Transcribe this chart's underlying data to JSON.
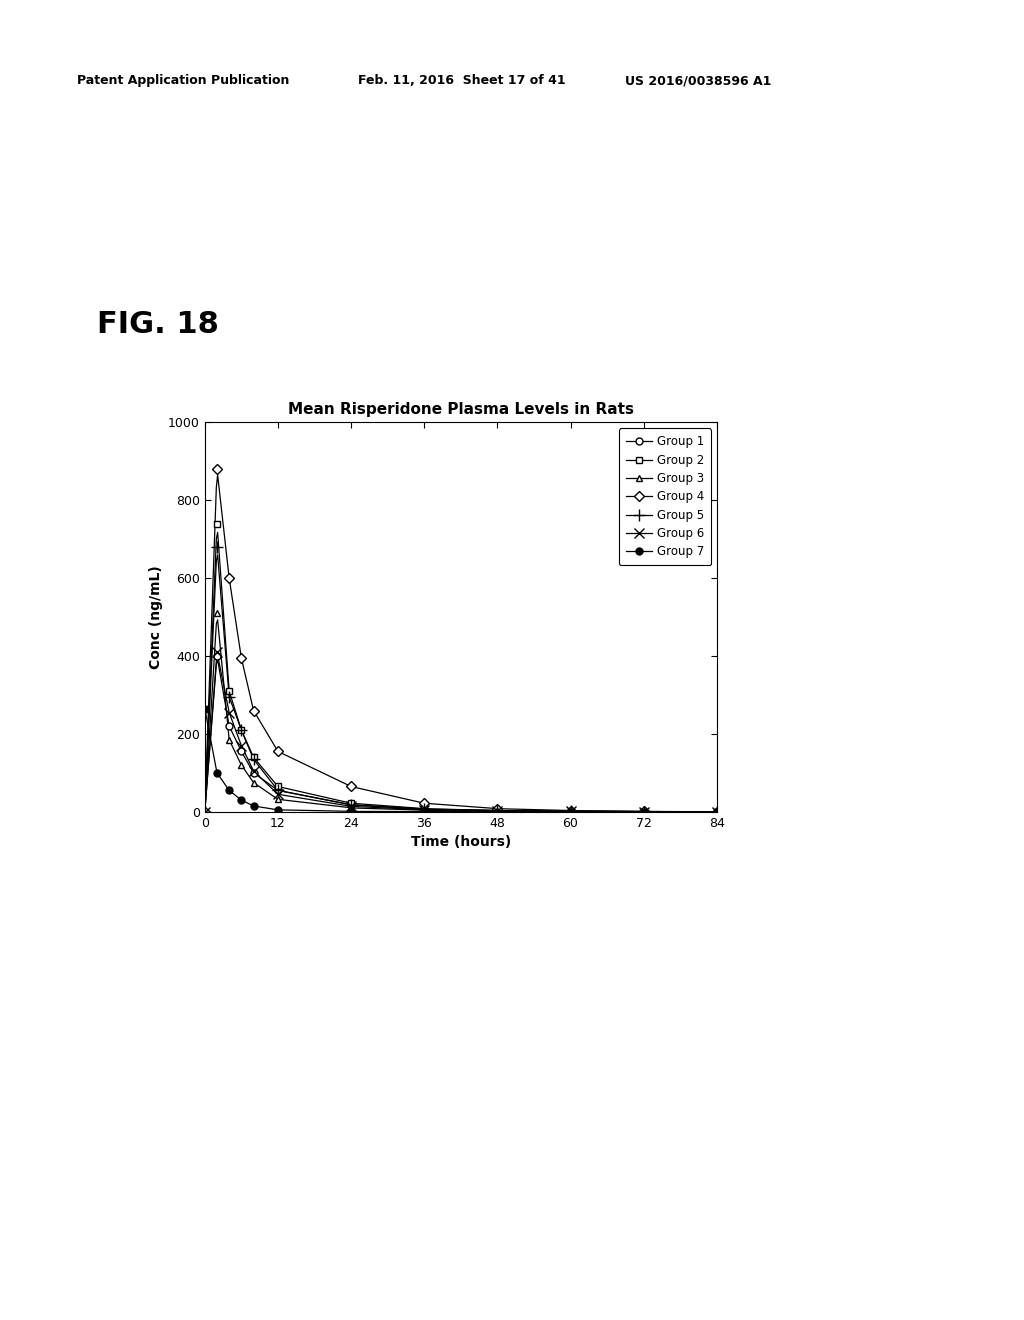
{
  "title": "Mean Risperidone Plasma Levels in Rats",
  "xlabel": "Time (hours)",
  "ylabel": "Conc (ng/mL)",
  "ylim": [
    0,
    1000
  ],
  "xlim": [
    0,
    84
  ],
  "xticks": [
    0,
    12,
    24,
    36,
    48,
    60,
    72,
    84
  ],
  "yticks": [
    0,
    200,
    400,
    600,
    800,
    1000
  ],
  "background_color": "#ffffff",
  "fig_text": "FIG. 18",
  "header_left": "Patent Application Publication",
  "header_mid": "Feb. 11, 2016  Sheet 17 of 41",
  "header_right": "US 2016/0038596 A1",
  "groups": [
    {
      "label": "Group 1",
      "marker": "o",
      "fillstyle": "none",
      "time": [
        0,
        2,
        4,
        6,
        8,
        12,
        24,
        36,
        48,
        60,
        72,
        84
      ],
      "conc": [
        0,
        400,
        220,
        155,
        100,
        55,
        18,
        7,
        3,
        1,
        0.5,
        0
      ]
    },
    {
      "label": "Group 2",
      "marker": "s",
      "fillstyle": "none",
      "time": [
        0,
        2,
        4,
        6,
        8,
        12,
        24,
        36,
        48,
        60,
        72,
        84
      ],
      "conc": [
        0,
        740,
        310,
        210,
        140,
        65,
        22,
        8,
        3,
        1,
        0.5,
        0
      ]
    },
    {
      "label": "Group 3",
      "marker": "^",
      "fillstyle": "none",
      "time": [
        0,
        2,
        4,
        6,
        8,
        12,
        24,
        36,
        48,
        60,
        72,
        84
      ],
      "conc": [
        0,
        510,
        185,
        120,
        75,
        32,
        10,
        4,
        2,
        1,
        0.5,
        0
      ]
    },
    {
      "label": "Group 4",
      "marker": "D",
      "fillstyle": "none",
      "time": [
        0,
        2,
        4,
        6,
        8,
        12,
        24,
        36,
        48,
        60,
        72,
        84
      ],
      "conc": [
        0,
        880,
        600,
        395,
        260,
        155,
        65,
        22,
        8,
        3,
        1,
        0
      ]
    },
    {
      "label": "Group 5",
      "marker": "+",
      "fillstyle": "full",
      "time": [
        0,
        2,
        4,
        6,
        8,
        12,
        24,
        36,
        48,
        60,
        72,
        84
      ],
      "conc": [
        0,
        680,
        295,
        210,
        135,
        55,
        18,
        6,
        3,
        1,
        0.5,
        0
      ]
    },
    {
      "label": "Group 6",
      "marker": "x",
      "fillstyle": "full",
      "time": [
        0,
        2,
        4,
        6,
        8,
        12,
        24,
        36,
        48,
        60,
        72,
        84
      ],
      "conc": [
        0,
        410,
        255,
        170,
        105,
        45,
        14,
        5,
        2,
        1,
        0.5,
        0
      ]
    },
    {
      "label": "Group 7",
      "marker": "o",
      "fillstyle": "full",
      "time": [
        0,
        2,
        4,
        6,
        8,
        12,
        24,
        36,
        48,
        60,
        72,
        84
      ],
      "conc": [
        265,
        100,
        55,
        30,
        15,
        5,
        1,
        0.5,
        0,
        0,
        0,
        0
      ]
    }
  ]
}
